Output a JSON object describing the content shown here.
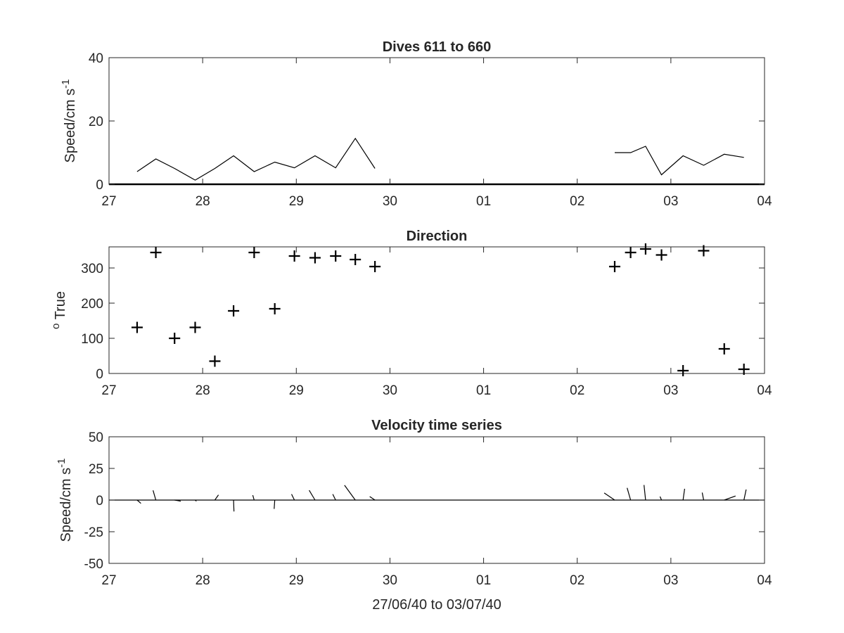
{
  "chart_data": [
    {
      "type": "line",
      "title": "Dives 611 to 660",
      "ylabel_base": "Speed/cm s",
      "ylabel_sup": "-1",
      "xlabel": "",
      "x_ticklabels": [
        "27",
        "28",
        "29",
        "30",
        "01",
        "02",
        "03",
        "04"
      ],
      "y_ticklabels": [
        "0",
        "20",
        "40"
      ],
      "xlim": [
        0,
        7
      ],
      "ylim": [
        0,
        40
      ],
      "line_color": "#000000",
      "segments": [
        {
          "x": [
            0.3,
            0.5,
            0.7,
            0.92,
            1.13,
            1.33,
            1.55,
            1.77,
            1.98,
            2.2,
            2.42,
            2.63,
            2.84
          ],
          "y": [
            4.0,
            8.0,
            5.0,
            1.3,
            5.0,
            9.0,
            4.0,
            7.0,
            5.2,
            9.0,
            5.2,
            14.5,
            5.0
          ]
        },
        {
          "x": [
            5.4,
            5.57,
            5.73,
            5.9,
            6.13,
            6.35,
            6.57,
            6.78
          ],
          "y": [
            10.0,
            10.0,
            12.0,
            3.0,
            9.0,
            6.0,
            9.5,
            8.5
          ]
        }
      ],
      "zero_line": true
    },
    {
      "type": "scatter",
      "title": "Direction",
      "ylabel_base": " True",
      "ylabel_sup": "o",
      "xlabel": "",
      "x_ticklabels": [
        "27",
        "28",
        "29",
        "30",
        "01",
        "02",
        "03",
        "04"
      ],
      "y_ticklabels": [
        "0",
        "100",
        "200",
        "300"
      ],
      "xlim": [
        0,
        7
      ],
      "ylim": [
        0,
        360
      ],
      "marker": "plus",
      "marker_color": "#000000",
      "x": [
        0.3,
        0.5,
        0.7,
        0.92,
        1.13,
        1.33,
        1.55,
        1.77,
        1.98,
        2.2,
        2.42,
        2.63,
        2.84,
        5.4,
        5.57,
        5.73,
        5.9,
        6.13,
        6.35,
        6.57,
        6.78
      ],
      "y": [
        131,
        344,
        100,
        131,
        35,
        178,
        344,
        184,
        334,
        329,
        334,
        324,
        304,
        304,
        344,
        354,
        337,
        8,
        349,
        70,
        12
      ]
    },
    {
      "type": "vector",
      "title": "Velocity time series",
      "ylabel_base": "Speed/cm s",
      "ylabel_sup": "-1",
      "xlabel": "27/06/40 to 03/07/40",
      "x_ticklabels": [
        "27",
        "28",
        "29",
        "30",
        "01",
        "02",
        "03",
        "04"
      ],
      "y_ticklabels": [
        "-50",
        "-25",
        "0",
        "25",
        "50"
      ],
      "xlim": [
        0,
        7
      ],
      "ylim": [
        -50,
        50
      ],
      "line_color": "#000000",
      "x": [
        0.3,
        0.5,
        0.7,
        0.92,
        1.13,
        1.33,
        1.55,
        1.77,
        1.98,
        2.2,
        2.42,
        2.63,
        2.84,
        5.4,
        5.57,
        5.73,
        5.9,
        6.13,
        6.35,
        6.57,
        6.78
      ],
      "speed": [
        4.0,
        8.0,
        5.0,
        1.3,
        5.0,
        9.0,
        4.0,
        7.0,
        5.2,
        9.0,
        5.2,
        14.5,
        5.0,
        10.0,
        10.0,
        12.0,
        3.0,
        9.0,
        6.0,
        9.5,
        8.5
      ],
      "direction": [
        131,
        344,
        100,
        131,
        35,
        178,
        344,
        184,
        334,
        329,
        334,
        324,
        304,
        304,
        344,
        354,
        337,
        8,
        349,
        70,
        12
      ]
    }
  ]
}
